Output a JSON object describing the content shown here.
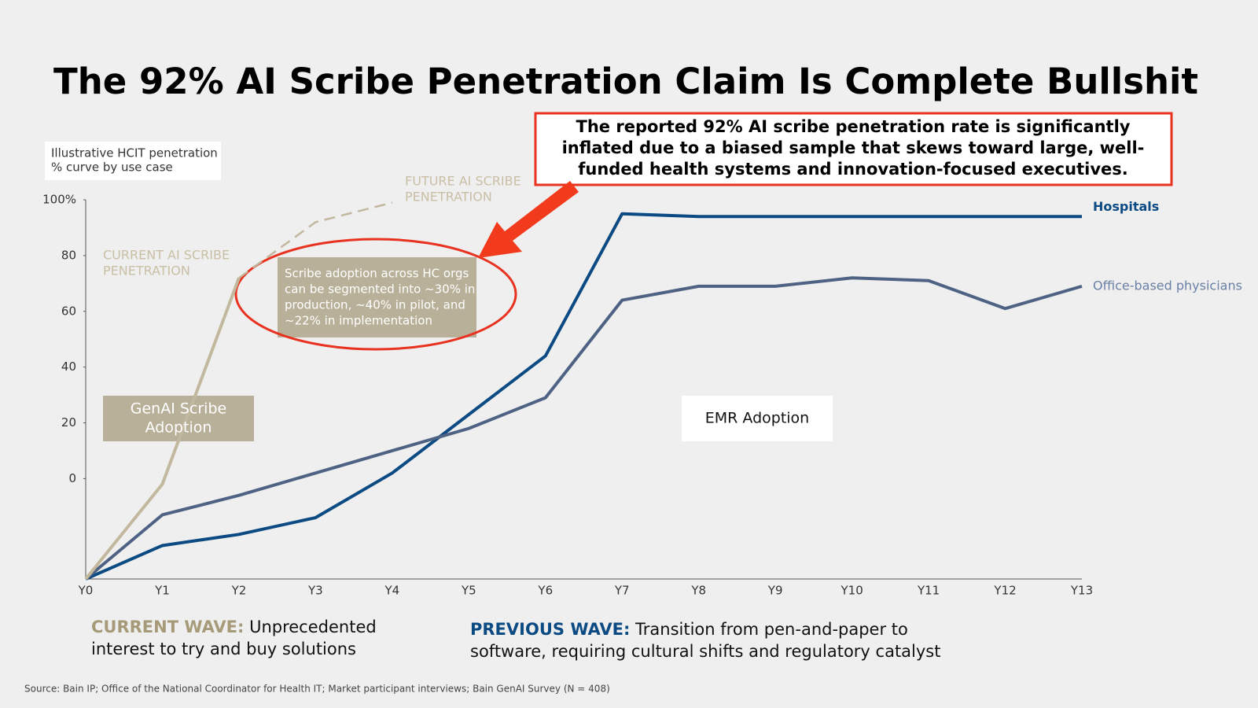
{
  "chart_data": {
    "type": "line",
    "title": "The 92% AI Scribe Penetration Claim Is Complete Bullshit",
    "y_label_lines": [
      "Illustrative HCIT penetration",
      "% curve by use case"
    ],
    "categories": [
      "Y0",
      "Y1",
      "Y2",
      "Y3",
      "Y4",
      "Y5",
      "Y6",
      "Y7",
      "Y8",
      "Y9",
      "Y10",
      "Y11",
      "Y12",
      "Y13"
    ],
    "ylim": [
      -36,
      100
    ],
    "yticks": [
      0,
      20,
      40,
      60,
      80,
      {
        "value": 100,
        "label": "100%"
      }
    ],
    "grid": false,
    "series": [
      {
        "name": "Hospitals",
        "color": "#0b4a82",
        "values": [
          -36,
          -24,
          -20,
          -14,
          2,
          23,
          44,
          95,
          94,
          94,
          94,
          94,
          94,
          94
        ]
      },
      {
        "name": "Office-based physicians",
        "color": "#4e6283",
        "values": [
          -36,
          -13,
          -6,
          2,
          10,
          18,
          29,
          64,
          69,
          69,
          72,
          71,
          61,
          69
        ]
      },
      {
        "color": "#c2b89e",
        "values": [
          -36,
          -2,
          72,
          null,
          null,
          null,
          null,
          null,
          null,
          null,
          null,
          null,
          null,
          null
        ]
      },
      {
        "color": "#c2b89e",
        "dashed": true,
        "values": [
          null,
          null,
          72,
          92,
          99,
          null,
          null,
          null,
          null,
          null,
          null,
          null,
          null,
          null
        ]
      }
    ],
    "callout_lines": [
      "The reported 92% AI scribe penetration rate is significantly",
      "inflated due to a biased sample that skews toward large, well-",
      "funded health systems and innovation-focused executives."
    ],
    "future_label_lines": [
      "FUTURE AI SCRIBE",
      "PENETRATION"
    ],
    "current_label_lines": [
      "CURRENT AI SCRIBE",
      "PENETRATION"
    ],
    "note_lines": [
      "Scribe adoption across HC orgs",
      "can be segmented  into ~30% in",
      "production, ~40% in pilot, and",
      "~22% in implementation"
    ],
    "genai_box_lines": [
      "GenAI Scribe",
      "Adoption"
    ],
    "emr_box": "EMR Adoption",
    "current_wave": {
      "head": "CURRENT WAVE:",
      "lines": [
        " Unprecedented",
        "interest to try and buy solutions"
      ]
    },
    "previous_wave": {
      "head": "PREVIOUS WAVE:",
      "lines": [
        " Transition from pen-and-paper to",
        "software, requiring cultural shifts and regulatory catalyst"
      ]
    },
    "source": "Source: Bain IP; Office of the National Coordinator for Health IT; Market participant interviews; Bain GenAI Survey (N = 408)"
  }
}
